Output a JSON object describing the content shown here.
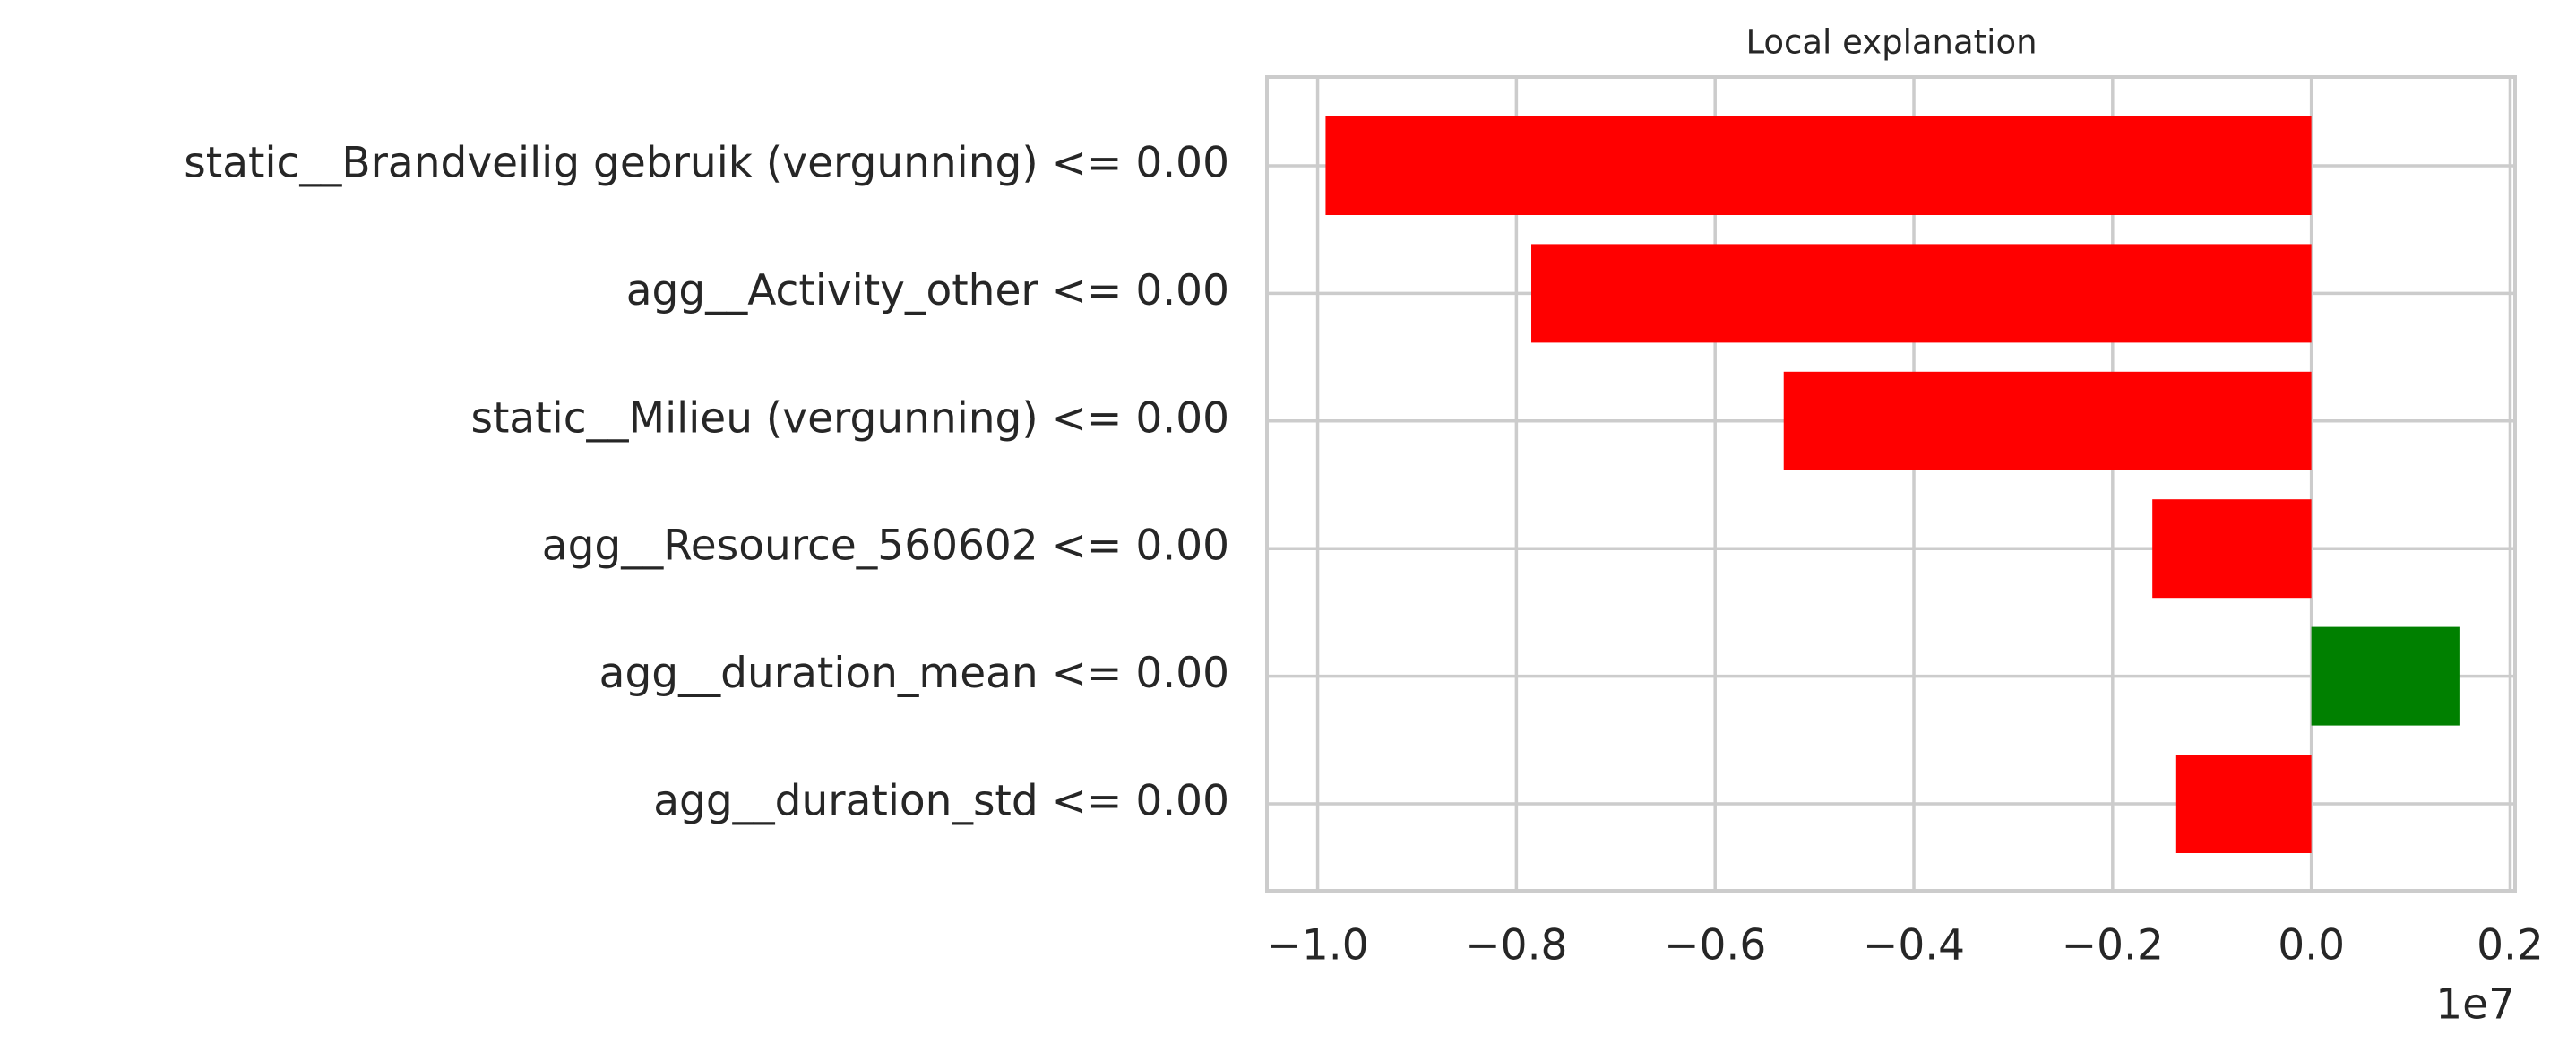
{
  "chart_data": {
    "type": "barh",
    "title": "Local explanation",
    "categories": [
      "static__Brandveilig gebruik (vergunning) <= 0.00",
      "agg__Activity_other <= 0.00",
      "static__Milieu (vergunning) <= 0.00",
      "agg__Resource_560602 <= 0.00",
      "agg__duration_mean <= 0.00",
      "agg__duration_std <= 0.00"
    ],
    "values": [
      -0.992,
      -0.785,
      -0.531,
      -0.16,
      0.149,
      -0.136
    ],
    "colors": [
      "#ff0000",
      "#ff0000",
      "#ff0000",
      "#ff0000",
      "#008000",
      "#ff0000"
    ],
    "xlim": [
      -1.051,
      0.205
    ],
    "xticks": [
      {
        "value": -1.0,
        "label": "−1.0"
      },
      {
        "value": -0.8,
        "label": "−0.8"
      },
      {
        "value": -0.6,
        "label": "−0.6"
      },
      {
        "value": -0.4,
        "label": "−0.4"
      },
      {
        "value": -0.2,
        "label": "−0.2"
      },
      {
        "value": 0,
        "label": "0.0"
      },
      0.2
    ],
    "x_offset_label": "1e7",
    "grid": true
  }
}
